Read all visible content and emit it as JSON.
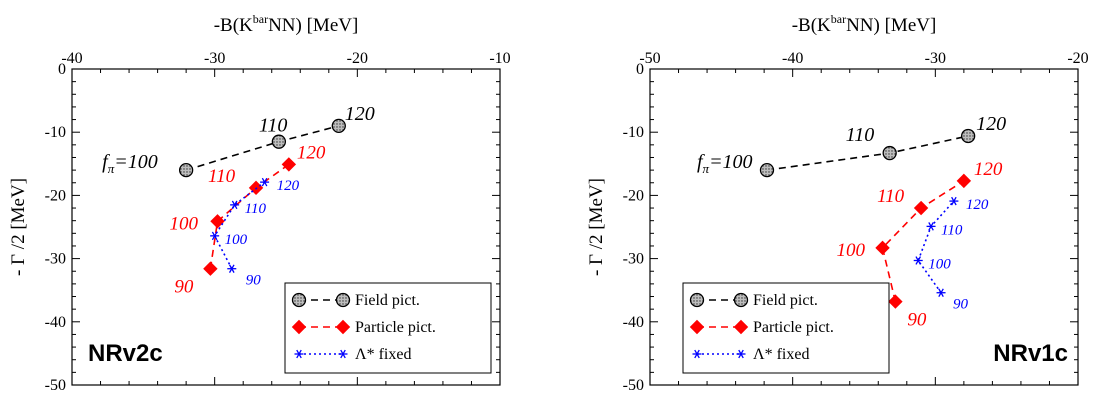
{
  "chart_data": [
    {
      "type": "line",
      "panel_label": "NRv2c",
      "xlabel_pre": "-B(K",
      "xlabel_sup": "bar",
      "xlabel_post": "NN) [MeV]",
      "ylabel": "- Γ /2 [MeV]",
      "xlim": [
        -40,
        -10
      ],
      "ylim": [
        -50,
        0
      ],
      "xticks": [
        -40,
        -30,
        -20,
        -10
      ],
      "yticks": [
        0,
        -10,
        -20,
        -30,
        -40,
        -50
      ],
      "x_axis_position": "top",
      "grid": false,
      "legend_position": "bottom-right",
      "series": [
        {
          "name": "Field pict.",
          "color": "#000000",
          "marker": "hatched-circle",
          "linestyle": "dashed",
          "x": [
            -32.0,
            -25.5,
            -21.3
          ],
          "y": [
            -16.0,
            -11.5,
            -9.0
          ],
          "labels": [
            "f_π=100",
            "110",
            "120"
          ]
        },
        {
          "name": "Particle pict.",
          "color": "#ff0000",
          "marker": "diamond",
          "linestyle": "dashed",
          "x": [
            -30.3,
            -29.8,
            -27.1,
            -24.8
          ],
          "y": [
            -31.6,
            -24.1,
            -18.8,
            -15.1
          ],
          "labels": [
            "90",
            "100",
            "110",
            "120"
          ]
        },
        {
          "name": "Λ* fixed",
          "color": "#0000ff",
          "marker": "asterisk",
          "linestyle": "dotted",
          "x": [
            -28.8,
            -30.0,
            -28.6,
            -26.5
          ],
          "y": [
            -31.6,
            -26.4,
            -21.5,
            -17.9
          ],
          "labels": [
            "90",
            "100",
            "110",
            "120"
          ]
        }
      ]
    },
    {
      "type": "line",
      "panel_label": "NRv1c",
      "xlabel_pre": "-B(K",
      "xlabel_sup": "bar",
      "xlabel_post": "NN) [MeV]",
      "ylabel": "- Γ /2 [MeV]",
      "xlim": [
        -50,
        -20
      ],
      "ylim": [
        -50,
        0
      ],
      "xticks": [
        -50,
        -40,
        -30,
        -20
      ],
      "yticks": [
        0,
        -10,
        -20,
        -30,
        -40,
        -50
      ],
      "x_axis_position": "top",
      "grid": false,
      "legend_position": "bottom-left",
      "series": [
        {
          "name": "Field pict.",
          "color": "#000000",
          "marker": "hatched-circle",
          "linestyle": "dashed",
          "x": [
            -41.8,
            -33.2,
            -27.7
          ],
          "y": [
            -16.0,
            -13.3,
            -10.6
          ],
          "labels": [
            "f_π=100",
            "110",
            "120"
          ]
        },
        {
          "name": "Particle pict.",
          "color": "#ff0000",
          "marker": "diamond",
          "linestyle": "dashed",
          "x": [
            -32.8,
            -33.7,
            -31.0,
            -28.0
          ],
          "y": [
            -36.8,
            -28.3,
            -22.0,
            -17.7
          ],
          "labels": [
            "90",
            "100",
            "110",
            "120"
          ]
        },
        {
          "name": "Λ* fixed",
          "color": "#0000ff",
          "marker": "asterisk",
          "linestyle": "dotted",
          "x": [
            -29.6,
            -31.2,
            -30.3,
            -28.7
          ],
          "y": [
            -35.4,
            -30.3,
            -24.9,
            -20.9
          ],
          "labels": [
            "90",
            "100",
            "110",
            "120"
          ]
        }
      ]
    }
  ]
}
